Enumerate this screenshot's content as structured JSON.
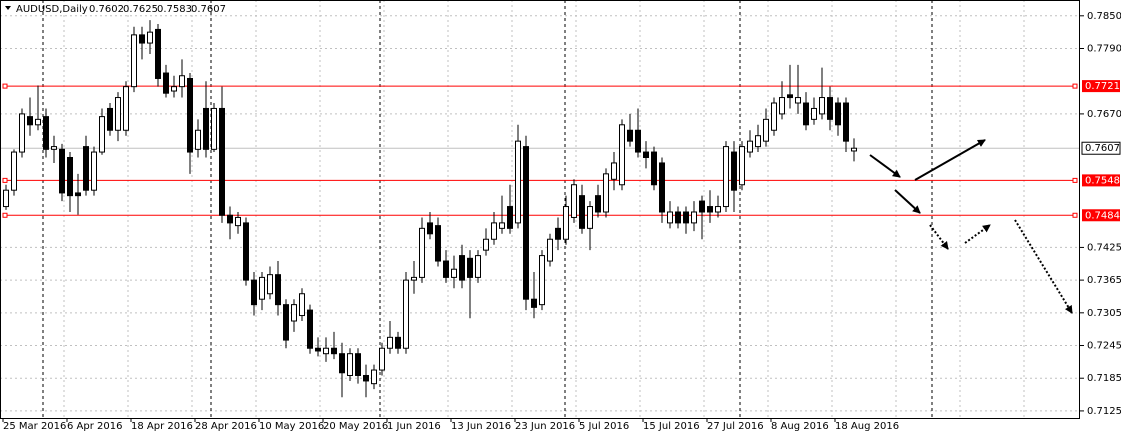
{
  "chart_data": {
    "type": "candlestick",
    "title": "AUDUSD,Daily",
    "categories": [
      "25 Mar 2016",
      null,
      null,
      null,
      null,
      null,
      null,
      null,
      "6 Apr 2016",
      null,
      null,
      null,
      null,
      null,
      null,
      null,
      "18 Apr 2016",
      null,
      null,
      null,
      null,
      null,
      null,
      null,
      "28 Apr 2016",
      null,
      null,
      null,
      null,
      null,
      null,
      null,
      "10 May 2016",
      null,
      null,
      null,
      null,
      null,
      null,
      null,
      "20 May 2016",
      null,
      null,
      null,
      null,
      null,
      null,
      null,
      "1 Jun 2016",
      null,
      null,
      null,
      null,
      null,
      null,
      null,
      "13 Jun 2016",
      null,
      null,
      null,
      null,
      null,
      null,
      null,
      "23 Jun 2016",
      null,
      null,
      null,
      null,
      null,
      null,
      null,
      "5 Jul 2016",
      null,
      null,
      null,
      null,
      null,
      null,
      null,
      "15 Jul 2016",
      null,
      null,
      null,
      null,
      null,
      null,
      null,
      "27 Jul 2016",
      null,
      null,
      null,
      null,
      null,
      null,
      null,
      "8 Aug 2016",
      null,
      null,
      null,
      null,
      null,
      null,
      null,
      "18 Aug 2016",
      null,
      null
    ],
    "open": [
      0.75,
      0.753,
      0.76,
      0.7665,
      0.765,
      0.7665,
      0.7605,
      0.7605,
      0.759,
      0.7525,
      0.761,
      0.753,
      0.76,
      0.768,
      0.764,
      0.764,
      0.772,
      0.7815,
      0.78,
      0.7825,
      0.7745,
      0.7712,
      0.772,
      0.7735,
      0.7605,
      0.768,
      0.7605,
      0.768,
      0.7484,
      0.7465,
      0.747,
      0.7365,
      0.733,
      0.734,
      0.7375,
      0.732,
      0.729,
      0.73,
      0.731,
      0.724,
      0.723,
      0.724,
      0.723,
      0.719,
      0.723,
      0.719,
      0.7175,
      0.72,
      0.724,
      0.726,
      0.724,
      0.7365,
      0.737,
      0.747,
      0.7465,
      0.74,
      0.737,
      0.741,
      0.7405,
      0.737,
      0.742,
      0.744,
      0.746,
      0.75,
      0.747,
      0.761,
      0.733,
      0.732,
      0.74,
      0.746,
      0.744,
      0.748,
      0.752,
      0.746,
      0.752,
      0.749,
      0.755,
      0.754,
      0.764,
      0.764,
      0.76,
      0.76,
      0.758,
      0.747,
      0.749,
      0.749,
      0.747,
      0.751,
      0.75,
      0.749,
      0.75,
      0.76,
      0.754,
      0.76,
      0.761,
      0.762,
      0.764,
      0.767,
      0.7705,
      0.769,
      0.769,
      0.766,
      0.767,
      0.77,
      0.769,
      0.769,
      0.7602
    ],
    "high": [
      0.754,
      0.7605,
      0.768,
      0.77,
      0.7722,
      0.768,
      0.763,
      0.7615,
      0.76,
      0.756,
      0.763,
      0.761,
      0.768,
      0.769,
      0.771,
      0.773,
      0.783,
      0.783,
      0.7842,
      0.7835,
      0.776,
      0.774,
      0.777,
      0.7745,
      0.766,
      0.773,
      0.769,
      0.772,
      0.75,
      0.749,
      0.748,
      0.738,
      0.738,
      0.739,
      0.74,
      0.733,
      0.733,
      0.735,
      0.732,
      0.726,
      0.726,
      0.727,
      0.725,
      0.724,
      0.724,
      0.721,
      0.721,
      0.725,
      0.729,
      0.727,
      0.738,
      0.74,
      0.748,
      0.749,
      0.748,
      0.742,
      0.741,
      0.743,
      0.742,
      0.742,
      0.746,
      0.749,
      0.752,
      0.754,
      0.765,
      0.763,
      0.738,
      0.742,
      0.745,
      0.748,
      0.752,
      0.755,
      0.754,
      0.751,
      0.754,
      0.757,
      0.76,
      0.766,
      0.767,
      0.768,
      0.762,
      0.761,
      0.759,
      0.751,
      0.75,
      0.75,
      0.751,
      0.752,
      0.753,
      0.752,
      0.762,
      0.762,
      0.762,
      0.764,
      0.765,
      0.768,
      0.77,
      0.773,
      0.776,
      0.776,
      0.771,
      0.77,
      0.7755,
      0.772,
      0.77,
      0.77,
      0.7625
    ],
    "low": [
      0.7494,
      0.752,
      0.759,
      0.763,
      0.764,
      0.759,
      0.758,
      0.751,
      0.749,
      0.7485,
      0.752,
      0.752,
      0.7595,
      0.763,
      0.762,
      0.763,
      0.771,
      0.777,
      0.778,
      0.772,
      0.77,
      0.77,
      0.77,
      0.756,
      0.759,
      0.759,
      0.76,
      0.747,
      0.744,
      0.745,
      0.7355,
      0.73,
      0.731,
      0.733,
      0.73,
      0.724,
      0.727,
      0.729,
      0.723,
      0.7225,
      0.7215,
      0.722,
      0.715,
      0.718,
      0.7175,
      0.715,
      0.7165,
      0.719,
      0.723,
      0.723,
      0.723,
      0.734,
      0.736,
      0.744,
      0.739,
      0.736,
      0.735,
      0.735,
      0.7295,
      0.736,
      0.741,
      0.743,
      0.745,
      0.745,
      0.746,
      0.731,
      0.7295,
      0.731,
      0.739,
      0.742,
      0.743,
      0.747,
      0.745,
      0.742,
      0.748,
      0.748,
      0.753,
      0.753,
      0.761,
      0.759,
      0.757,
      0.753,
      0.747,
      0.746,
      0.746,
      0.745,
      0.7455,
      0.744,
      0.747,
      0.748,
      0.749,
      0.749,
      0.753,
      0.759,
      0.76,
      0.761,
      0.763,
      0.766,
      0.768,
      0.767,
      0.764,
      0.765,
      0.766,
      0.764,
      0.763,
      0.76,
      0.7583
    ],
    "close": [
      0.753,
      0.76,
      0.767,
      0.765,
      0.766,
      0.7605,
      0.761,
      0.7525,
      0.752,
      0.752,
      0.753,
      0.76,
      0.7665,
      0.764,
      0.77,
      0.772,
      0.7815,
      0.78,
      0.782,
      0.7735,
      0.7708,
      0.772,
      0.774,
      0.76,
      0.764,
      0.7605,
      0.768,
      0.7484,
      0.747,
      0.748,
      0.7365,
      0.732,
      0.737,
      0.7375,
      0.732,
      0.7255,
      0.732,
      0.734,
      0.724,
      0.7235,
      0.724,
      0.723,
      0.7195,
      0.723,
      0.719,
      0.718,
      0.72,
      0.724,
      0.726,
      0.724,
      0.7365,
      0.737,
      0.746,
      0.745,
      0.74,
      0.737,
      0.7385,
      0.7365,
      0.737,
      0.741,
      0.744,
      0.747,
      0.747,
      0.746,
      0.762,
      0.733,
      0.7315,
      0.741,
      0.744,
      0.744,
      0.75,
      0.754,
      0.746,
      0.75,
      0.749,
      0.756,
      0.758,
      0.765,
      0.762,
      0.76,
      0.759,
      0.754,
      0.749,
      0.749,
      0.747,
      0.747,
      0.749,
      0.749,
      0.749,
      0.75,
      0.761,
      0.753,
      0.761,
      0.762,
      0.763,
      0.766,
      0.769,
      0.77,
      0.77,
      0.77,
      0.765,
      0.768,
      0.77,
      0.766,
      0.765,
      0.762,
      0.7607
    ],
    "hlines": [
      {
        "value": 0.7721,
        "color": "#ff0000"
      },
      {
        "value": 0.7548,
        "color": "#ff0000"
      },
      {
        "value": 0.7484,
        "color": "#ff0000"
      }
    ],
    "ylim": [
      0.7112,
      0.7879
    ],
    "yticks": [
      {
        "value": 0.785,
        "label": "0.7850"
      },
      {
        "value": 0.779,
        "label": "0.7790"
      },
      {
        "value": 0.767,
        "label": "0.7670"
      },
      0.7425,
      0.7365,
      0.7305,
      0.7245,
      0.7185,
      0.7125
    ],
    "grid": true
  }
}
